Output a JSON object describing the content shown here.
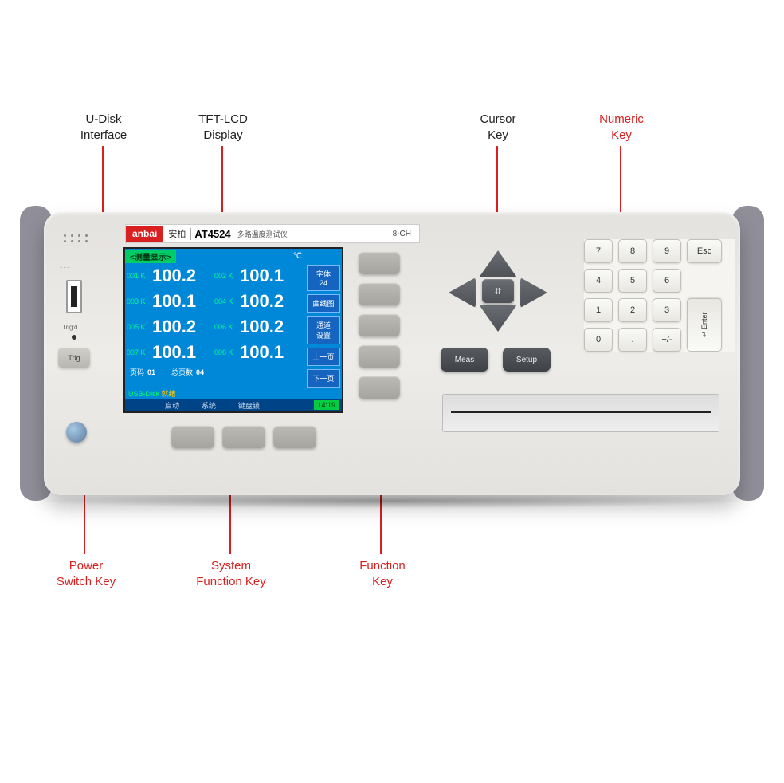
{
  "callouts": {
    "udisk": "U-Disk\nInterface",
    "tftlcd": "TFT-LCD\nDisplay",
    "cursor": "Cursor\nKey",
    "numeric": "Numeric\nKey",
    "power": "Power\nSwitch Key",
    "sysfn": "System\nFunction Key",
    "fnkey": "Function\nKey"
  },
  "device": {
    "brand_en": "anbai",
    "brand_cn": "安柏",
    "model": "AT4524",
    "model_cn": "多路温度测试仪",
    "channels": "8-CH",
    "trig_label": "Trig'd",
    "trig_btn": "Trig"
  },
  "lcd": {
    "header_tab": "<测量显示>",
    "unit": "℃",
    "channels": [
      {
        "id": "001",
        "type": "K",
        "val": "100.2"
      },
      {
        "id": "002",
        "type": "K",
        "val": "100.1"
      },
      {
        "id": "003",
        "type": "K",
        "val": "100.1"
      },
      {
        "id": "004",
        "type": "K",
        "val": "100.2"
      },
      {
        "id": "005",
        "type": "K",
        "val": "100.2"
      },
      {
        "id": "006",
        "type": "K",
        "val": "100.2"
      },
      {
        "id": "007",
        "type": "K",
        "val": "100.1"
      },
      {
        "id": "008",
        "type": "K",
        "val": "100.1"
      }
    ],
    "side_buttons": [
      "字体\n24",
      "曲线图",
      "通道\n设置",
      "上一页",
      "下一页"
    ],
    "footer_page_lbl": "页码",
    "footer_page_val": "01",
    "footer_total_lbl": "总页数",
    "footer_total_val": "04",
    "usb_status": "USB-Disk",
    "usb_ready": "就绪",
    "bar_items": [
      "启动",
      "系统",
      "键盘锁"
    ],
    "time": "14:19"
  },
  "cursor": {
    "center": "⇵",
    "meas": "Meas",
    "setup": "Setup"
  },
  "keypad": {
    "keys": [
      [
        "7",
        "8",
        "9",
        "Esc"
      ],
      [
        "4",
        "5",
        "6",
        ""
      ],
      [
        "1",
        "2",
        "3",
        "↵ Enter"
      ],
      [
        "0",
        ".",
        "+/-",
        ""
      ]
    ]
  },
  "colors": {
    "accent_red": "#d82020",
    "lcd_bg": "#0088d8",
    "device_body": "#e8e6e2",
    "device_side": "#908f99",
    "dark_btn": "#585c60"
  }
}
